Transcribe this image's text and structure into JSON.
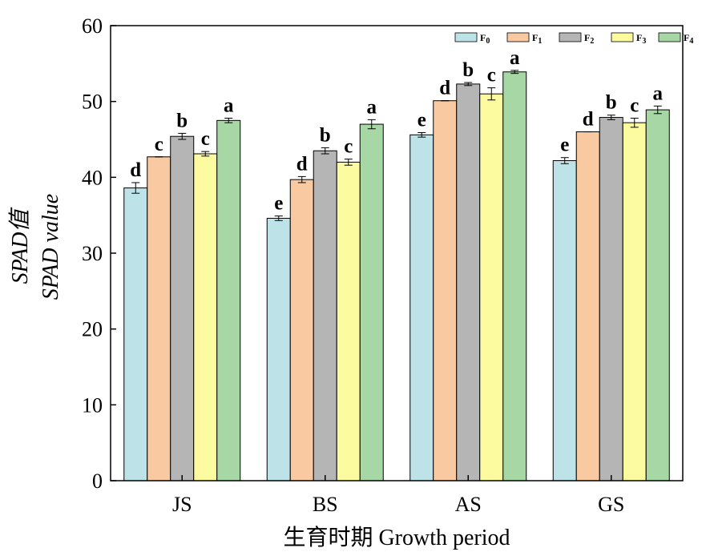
{
  "chart_data": {
    "type": "bar",
    "xlabel": "生育时期 Growth period",
    "ylabel_line1": "SPAD值",
    "ylabel_line2": "SPAD value",
    "ylim": [
      0,
      60
    ],
    "yticks": [
      0,
      10,
      20,
      30,
      40,
      50,
      60
    ],
    "categories": [
      "JS",
      "BS",
      "AS",
      "GS"
    ],
    "legend_position": "top-right",
    "grid": false,
    "series": [
      {
        "name": "F0",
        "base": "F",
        "sub": "0",
        "color": "#bde3e8",
        "values": [
          38.6,
          34.6,
          45.6,
          42.2
        ],
        "errors": [
          0.7,
          0.3,
          0.3,
          0.4
        ],
        "labels": [
          "d",
          "e",
          "e",
          "e"
        ]
      },
      {
        "name": "F1",
        "base": "F",
        "sub": "1",
        "color": "#f9c9a2",
        "values": [
          42.7,
          39.7,
          50.1,
          46.0
        ],
        "errors": [
          0.0,
          0.4,
          0.0,
          0.0
        ],
        "labels": [
          "c",
          "d",
          "d",
          "d"
        ]
      },
      {
        "name": "F2",
        "base": "F",
        "sub": "2",
        "color": "#b5b5b5",
        "values": [
          45.4,
          43.5,
          52.3,
          47.9
        ],
        "errors": [
          0.4,
          0.4,
          0.2,
          0.3
        ],
        "labels": [
          "b",
          "b",
          "b",
          "b"
        ]
      },
      {
        "name": "F3",
        "base": "F",
        "sub": "3",
        "color": "#fdfba0",
        "values": [
          43.1,
          42.0,
          51.0,
          47.2
        ],
        "errors": [
          0.3,
          0.4,
          0.8,
          0.6
        ],
        "labels": [
          "c",
          "c",
          "c",
          "c"
        ]
      },
      {
        "name": "F4",
        "base": "F",
        "sub": "4",
        "color": "#a6d7a5",
        "values": [
          47.5,
          47.0,
          53.9,
          48.9
        ],
        "errors": [
          0.3,
          0.6,
          0.2,
          0.5
        ],
        "labels": [
          "a",
          "a",
          "a",
          "a"
        ]
      }
    ]
  }
}
